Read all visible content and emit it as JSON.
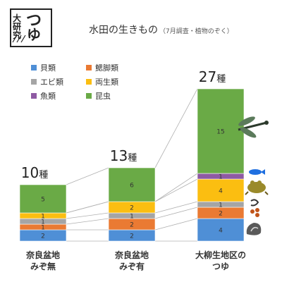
{
  "logo": {
    "chars": [
      "大",
      "研",
      "究",
      "つ",
      "ゆ"
    ]
  },
  "chart_data": {
    "type": "bar",
    "stacked": true,
    "title": "水田の生きもの",
    "subtitle": "（7月調査・植物のぞく）",
    "categories": [
      {
        "line1": "奈良盆地",
        "line2": "みぞ無"
      },
      {
        "line1": "奈良盆地",
        "line2": "みぞ有"
      },
      {
        "line1": "大柳生地区の",
        "line2": "つゆ"
      }
    ],
    "totals": [
      {
        "num": "10",
        "unit": "種"
      },
      {
        "num": "13",
        "unit": "種"
      },
      {
        "num": "27",
        "unit": "種"
      }
    ],
    "ylim": [
      0,
      27
    ],
    "series": [
      {
        "name": "貝類",
        "color": "#4f8fd6",
        "values": [
          2,
          2,
          4
        ]
      },
      {
        "name": "鰓脚類",
        "color": "#ea7a33",
        "values": [
          1,
          2,
          2
        ]
      },
      {
        "name": "エビ類",
        "color": "#a5a5a5",
        "values": [
          1,
          1,
          1
        ]
      },
      {
        "name": "両生類",
        "color": "#fbbe11",
        "values": [
          1,
          2,
          4
        ]
      },
      {
        "name": "魚類",
        "color": "#8e5aa3",
        "values": [
          0,
          0,
          1
        ]
      },
      {
        "name": "昆虫",
        "color": "#6aaa46",
        "values": [
          5,
          6,
          15
        ]
      }
    ],
    "legend_position": "top-left"
  }
}
